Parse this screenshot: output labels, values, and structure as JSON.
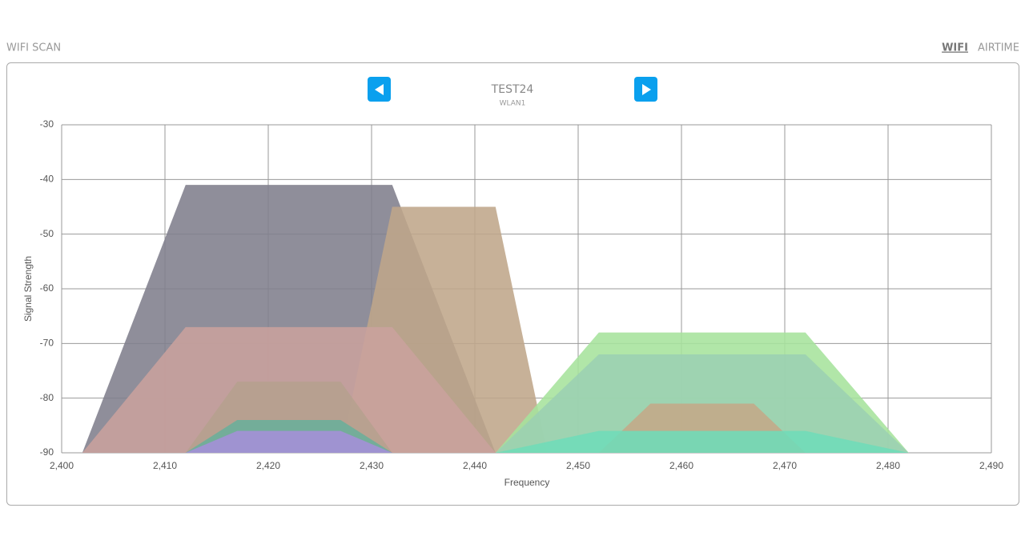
{
  "header": {
    "title": "WIFI SCAN",
    "tabs": [
      "WIFI",
      "AIRTIME"
    ]
  },
  "chart_data": {
    "type": "area",
    "title": "TEST24",
    "subtitle": "WLAN1",
    "x_label": "Frequency",
    "y_label": "Signal Strength",
    "xlim": [
      2400,
      2490
    ],
    "ylim": [
      -90,
      -30
    ],
    "xticks": [
      {
        "value": 2400,
        "label": "2,400"
      },
      {
        "value": 2410,
        "label": "2,410"
      },
      {
        "value": 2420,
        "label": "2,420"
      },
      {
        "value": 2430,
        "label": "2,430"
      },
      {
        "value": 2440,
        "label": "2,440"
      },
      {
        "value": 2450,
        "label": "2,450"
      },
      {
        "value": 2460,
        "label": "2,460"
      },
      {
        "value": 2470,
        "label": "2,470"
      },
      {
        "value": 2480,
        "label": "2,480"
      },
      {
        "value": 2490,
        "label": "2,490"
      }
    ],
    "yticks": [
      -30,
      -40,
      -50,
      -60,
      -70,
      -80,
      -90
    ],
    "grid": true,
    "series": [
      {
        "color": "#7f7e8c",
        "x": [
          2402,
          2412,
          2432,
          2442
        ],
        "values": [
          -90,
          -41,
          -41,
          -90
        ]
      },
      {
        "color": "#bfa68a",
        "x": [
          2427,
          2432,
          2442,
          2447
        ],
        "values": [
          -90,
          -45,
          -45,
          -90
        ]
      },
      {
        "color": "#c9a29d",
        "x": [
          2402,
          2412,
          2432,
          2442
        ],
        "values": [
          -90,
          -67,
          -67,
          -90
        ]
      },
      {
        "color": "#b5a08e",
        "x": [
          2412,
          2417,
          2427,
          2432
        ],
        "values": [
          -90,
          -77,
          -77,
          -90
        ]
      },
      {
        "color": "#6aae9a",
        "x": [
          2412,
          2417,
          2427,
          2432
        ],
        "values": [
          -90,
          -84,
          -84,
          -90
        ]
      },
      {
        "color": "#a58fd8",
        "x": [
          2412,
          2417,
          2427,
          2432
        ],
        "values": [
          -90,
          -86,
          -86,
          -90
        ]
      },
      {
        "color": "#a6e29c",
        "x": [
          2442,
          2452,
          2472,
          2482
        ],
        "values": [
          -90,
          -68,
          -68,
          -90
        ]
      },
      {
        "color": "#9bd0b2",
        "x": [
          2442,
          2452,
          2472,
          2482
        ],
        "values": [
          -90,
          -72,
          -72,
          -90
        ]
      },
      {
        "color": "#c4a888",
        "x": [
          2452,
          2457,
          2467,
          2472
        ],
        "values": [
          -90,
          -81,
          -81,
          -90
        ]
      },
      {
        "color": "#6fdcb8",
        "x": [
          2442,
          2452,
          2472,
          2482
        ],
        "values": [
          -90,
          -86,
          -86,
          -90
        ]
      }
    ]
  }
}
